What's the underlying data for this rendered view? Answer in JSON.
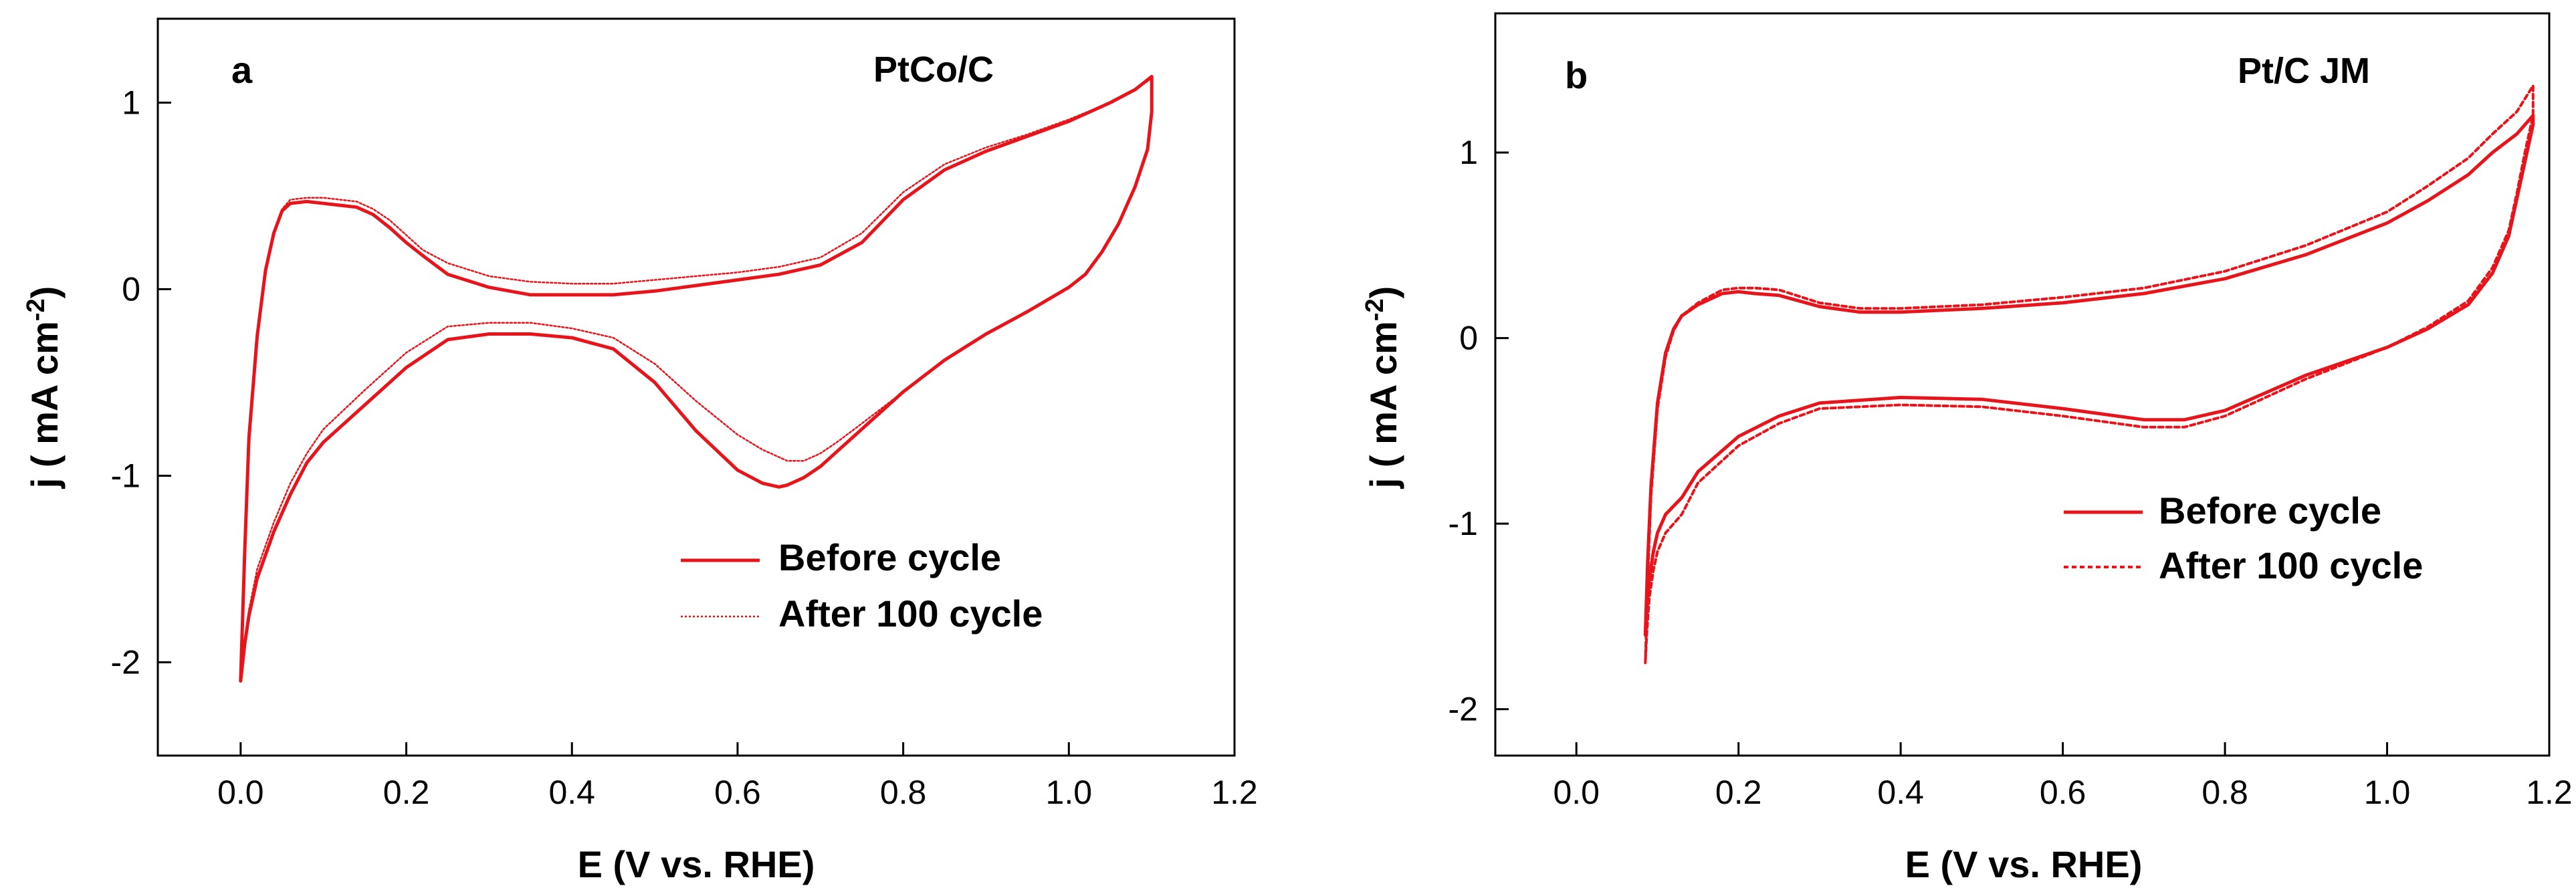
{
  "chart_data": [
    {
      "type": "line",
      "panel_label": "a",
      "title": "PtCo/C",
      "xlabel": "E (V vs. RHE)",
      "ylabel": "j ( mA cm",
      "ylabel_sup": "-2",
      "ylabel_end": ")",
      "xlim": [
        -0.1,
        1.2
      ],
      "ylim": [
        -2.5,
        1.45
      ],
      "xticks": [
        0.0,
        0.2,
        0.4,
        0.6,
        0.8,
        1.0,
        1.2
      ],
      "xtick_labels": [
        "0.0",
        "0.2",
        "0.4",
        "0.6",
        "0.8",
        "1.0",
        "1.2"
      ],
      "yticks": [
        -2,
        -1,
        0,
        1
      ],
      "ytick_labels": [
        "-2",
        "-1",
        "0",
        "1"
      ],
      "legend_position": "lower-right",
      "series": [
        {
          "name": "Before cycle",
          "style": "solid",
          "color": "#e8141b",
          "x": [
            0.0,
            0.005,
            0.01,
            0.02,
            0.03,
            0.04,
            0.05,
            0.06,
            0.08,
            0.1,
            0.12,
            0.14,
            0.16,
            0.18,
            0.2,
            0.22,
            0.25,
            0.3,
            0.35,
            0.4,
            0.45,
            0.5,
            0.55,
            0.6,
            0.65,
            0.7,
            0.75,
            0.8,
            0.85,
            0.9,
            0.95,
            1.0,
            1.05,
            1.08,
            1.1,
            1.1,
            1.095,
            1.08,
            1.06,
            1.04,
            1.02,
            1.0,
            0.95,
            0.9,
            0.85,
            0.8,
            0.75,
            0.72,
            0.7,
            0.68,
            0.66,
            0.65,
            0.63,
            0.6,
            0.55,
            0.5,
            0.45,
            0.4,
            0.35,
            0.3,
            0.25,
            0.2,
            0.15,
            0.1,
            0.08,
            0.06,
            0.04,
            0.02,
            0.01,
            0.005,
            0.0
          ],
          "y": [
            -2.1,
            -1.4,
            -0.8,
            -0.25,
            0.1,
            0.3,
            0.42,
            0.46,
            0.47,
            0.46,
            0.45,
            0.44,
            0.4,
            0.33,
            0.25,
            0.18,
            0.08,
            0.01,
            -0.03,
            -0.03,
            -0.03,
            -0.01,
            0.02,
            0.05,
            0.08,
            0.13,
            0.25,
            0.48,
            0.64,
            0.74,
            0.82,
            0.9,
            1.0,
            1.07,
            1.14,
            0.95,
            0.75,
            0.55,
            0.35,
            0.2,
            0.08,
            0.01,
            -0.12,
            -0.24,
            -0.38,
            -0.55,
            -0.75,
            -0.87,
            -0.95,
            -1.01,
            -1.05,
            -1.06,
            -1.04,
            -0.97,
            -0.76,
            -0.5,
            -0.32,
            -0.26,
            -0.24,
            -0.24,
            -0.27,
            -0.42,
            -0.62,
            -0.82,
            -0.93,
            -1.1,
            -1.3,
            -1.55,
            -1.75,
            -1.9,
            -2.1
          ]
        },
        {
          "name": "After 100 cycle",
          "style": "dotted",
          "color": "#e8141b",
          "x": [
            0.0,
            0.005,
            0.01,
            0.02,
            0.03,
            0.04,
            0.05,
            0.06,
            0.08,
            0.1,
            0.12,
            0.14,
            0.16,
            0.18,
            0.2,
            0.22,
            0.25,
            0.3,
            0.35,
            0.4,
            0.45,
            0.5,
            0.55,
            0.6,
            0.65,
            0.7,
            0.75,
            0.8,
            0.85,
            0.9,
            0.95,
            1.0,
            1.05,
            1.08,
            1.1,
            1.1,
            1.095,
            1.08,
            1.06,
            1.04,
            1.02,
            1.0,
            0.95,
            0.9,
            0.85,
            0.8,
            0.75,
            0.72,
            0.7,
            0.68,
            0.66,
            0.65,
            0.63,
            0.6,
            0.55,
            0.5,
            0.45,
            0.4,
            0.35,
            0.3,
            0.25,
            0.2,
            0.15,
            0.1,
            0.08,
            0.06,
            0.04,
            0.02,
            0.01,
            0.005,
            0.0
          ],
          "y": [
            -2.1,
            -1.4,
            -0.8,
            -0.25,
            0.1,
            0.3,
            0.43,
            0.48,
            0.49,
            0.49,
            0.48,
            0.47,
            0.43,
            0.37,
            0.29,
            0.21,
            0.14,
            0.07,
            0.04,
            0.03,
            0.03,
            0.05,
            0.07,
            0.09,
            0.12,
            0.17,
            0.3,
            0.52,
            0.67,
            0.76,
            0.83,
            0.91,
            1.0,
            1.07,
            1.13,
            0.95,
            0.75,
            0.55,
            0.35,
            0.2,
            0.08,
            0.01,
            -0.12,
            -0.24,
            -0.38,
            -0.55,
            -0.72,
            -0.82,
            -0.88,
            -0.92,
            -0.92,
            -0.9,
            -0.86,
            -0.78,
            -0.6,
            -0.4,
            -0.26,
            -0.21,
            -0.18,
            -0.18,
            -0.2,
            -0.34,
            -0.54,
            -0.75,
            -0.88,
            -1.04,
            -1.25,
            -1.5,
            -1.72,
            -1.88,
            -2.08
          ]
        }
      ]
    },
    {
      "type": "line",
      "panel_label": "b",
      "title": "Pt/C JM",
      "xlabel": "E (V vs. RHE)",
      "ylabel": "j ( mA cm",
      "ylabel_sup": "-2",
      "ylabel_end": ")",
      "xlim": [
        -0.1,
        1.2
      ],
      "ylim": [
        -2.25,
        1.75
      ],
      "xticks": [
        0.0,
        0.2,
        0.4,
        0.6,
        0.8,
        1.0,
        1.2
      ],
      "xtick_labels": [
        "0.0",
        "0.2",
        "0.4",
        "0.6",
        "0.8",
        "1.0",
        "1.2"
      ],
      "yticks": [
        -2,
        -1,
        0,
        1
      ],
      "ytick_labels": [
        "-2",
        "-1",
        "0",
        "1"
      ],
      "legend_position": "lower-right",
      "series": [
        {
          "name": "Before cycle",
          "style": "solid",
          "color": "#e8141b",
          "x": [
            0.085,
            0.088,
            0.092,
            0.1,
            0.11,
            0.12,
            0.13,
            0.15,
            0.18,
            0.2,
            0.22,
            0.25,
            0.3,
            0.35,
            0.4,
            0.5,
            0.6,
            0.7,
            0.8,
            0.9,
            1.0,
            1.05,
            1.1,
            1.13,
            1.16,
            1.18,
            1.18,
            1.17,
            1.16,
            1.15,
            1.13,
            1.1,
            1.05,
            1.0,
            0.9,
            0.8,
            0.75,
            0.7,
            0.6,
            0.5,
            0.4,
            0.3,
            0.25,
            0.2,
            0.15,
            0.13,
            0.11,
            0.1,
            0.095,
            0.09,
            0.087,
            0.085
          ],
          "y": [
            -1.6,
            -1.2,
            -0.8,
            -0.35,
            -0.08,
            0.05,
            0.12,
            0.18,
            0.24,
            0.25,
            0.24,
            0.23,
            0.17,
            0.14,
            0.14,
            0.16,
            0.19,
            0.24,
            0.32,
            0.45,
            0.62,
            0.74,
            0.88,
            1.0,
            1.1,
            1.2,
            1.15,
            0.95,
            0.75,
            0.55,
            0.35,
            0.18,
            0.05,
            -0.05,
            -0.2,
            -0.39,
            -0.44,
            -0.44,
            -0.38,
            -0.33,
            -0.32,
            -0.35,
            -0.42,
            -0.53,
            -0.72,
            -0.86,
            -0.95,
            -1.05,
            -1.15,
            -1.3,
            -1.45,
            -1.6
          ]
        },
        {
          "name": "After 100 cycle",
          "style": "dotted",
          "color": "#e8141b",
          "x": [
            0.085,
            0.088,
            0.092,
            0.1,
            0.11,
            0.12,
            0.13,
            0.15,
            0.18,
            0.2,
            0.22,
            0.25,
            0.3,
            0.35,
            0.4,
            0.5,
            0.6,
            0.7,
            0.8,
            0.9,
            1.0,
            1.05,
            1.1,
            1.13,
            1.16,
            1.18,
            1.18,
            1.17,
            1.16,
            1.15,
            1.13,
            1.1,
            1.05,
            1.0,
            0.9,
            0.8,
            0.75,
            0.7,
            0.6,
            0.5,
            0.4,
            0.3,
            0.25,
            0.2,
            0.15,
            0.13,
            0.11,
            0.1,
            0.095,
            0.09,
            0.087,
            0.085
          ],
          "y": [
            -1.75,
            -1.3,
            -0.85,
            -0.38,
            -0.1,
            0.04,
            0.12,
            0.19,
            0.26,
            0.27,
            0.27,
            0.26,
            0.19,
            0.16,
            0.16,
            0.18,
            0.22,
            0.27,
            0.36,
            0.5,
            0.68,
            0.82,
            0.97,
            1.1,
            1.22,
            1.36,
            1.2,
            1.0,
            0.78,
            0.58,
            0.38,
            0.2,
            0.06,
            -0.05,
            -0.22,
            -0.42,
            -0.48,
            -0.48,
            -0.42,
            -0.37,
            -0.36,
            -0.38,
            -0.46,
            -0.58,
            -0.78,
            -0.95,
            -1.05,
            -1.15,
            -1.25,
            -1.4,
            -1.58,
            -1.75
          ]
        }
      ]
    }
  ]
}
